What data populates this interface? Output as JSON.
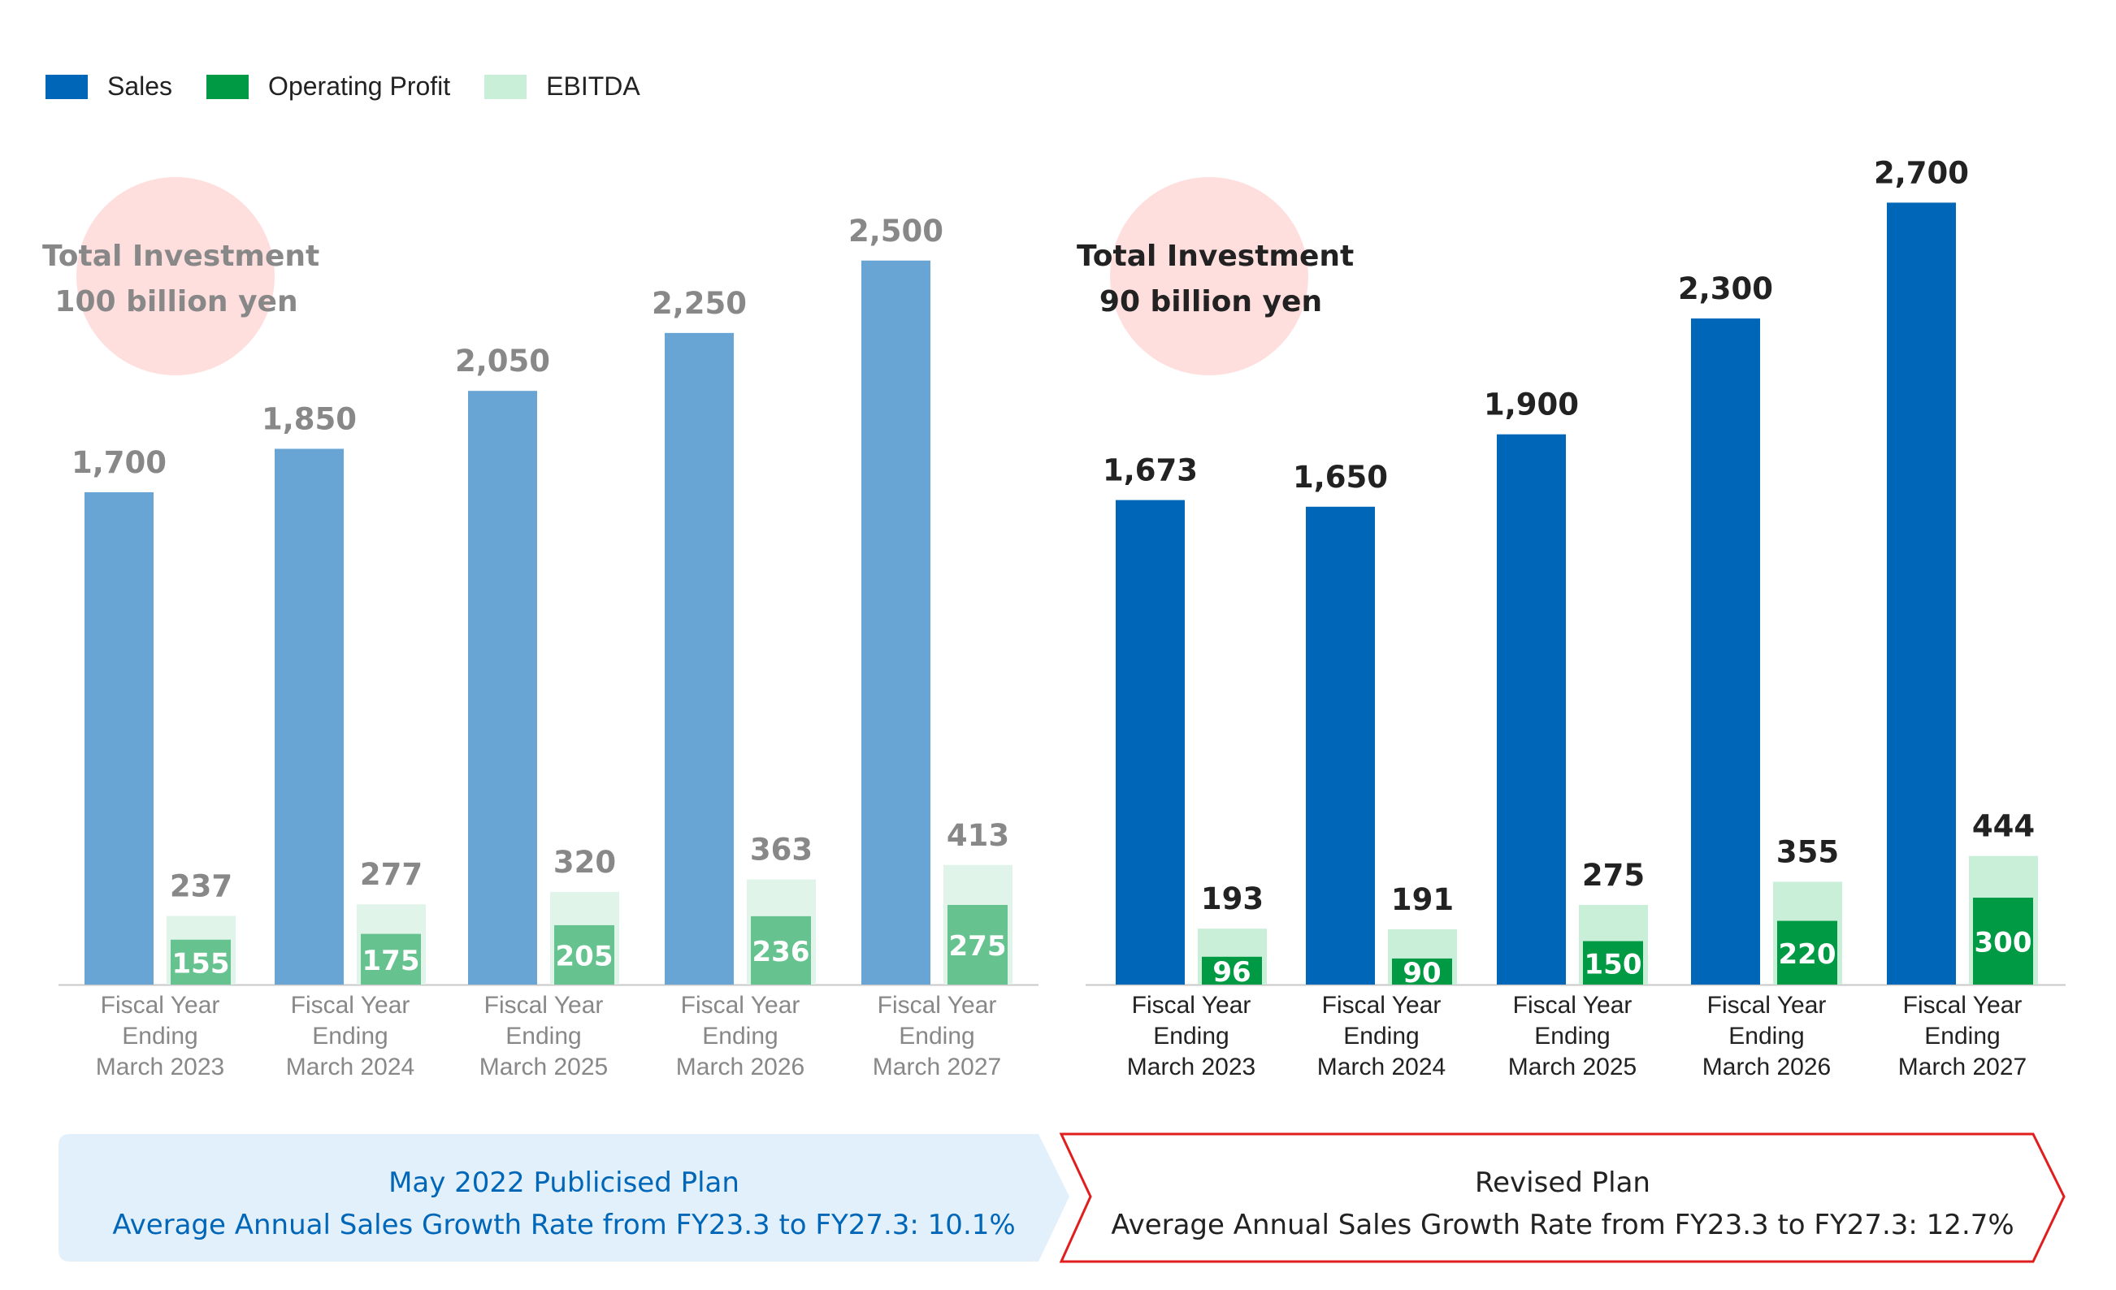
{
  "legend": [
    {
      "label": "Sales",
      "color": "#0066b8"
    },
    {
      "label": "Operating Profit",
      "color": "#009a44"
    },
    {
      "label": "EBITDA",
      "color": "#c9efd9"
    }
  ],
  "chart_data": [
    {
      "type": "bar",
      "categories": [
        [
          "Fiscal Year",
          "Ending",
          "March 2023"
        ],
        [
          "Fiscal Year",
          "Ending",
          "March 2024"
        ],
        [
          "Fiscal Year",
          "Ending",
          "March 2025"
        ],
        [
          "Fiscal Year",
          "Ending",
          "March 2026"
        ],
        [
          "Fiscal Year",
          "Ending",
          "March 2027"
        ]
      ],
      "series": [
        {
          "name": "Sales",
          "values": [
            1700,
            1850,
            2050,
            2250,
            2500
          ],
          "labels": [
            "1,700",
            "1,850",
            "2,050",
            "2,250",
            "2,500"
          ]
        },
        {
          "name": "Operating Profit",
          "values": [
            155,
            175,
            205,
            236,
            275
          ],
          "labels": [
            "155",
            "175",
            "205",
            "236",
            "275"
          ]
        },
        {
          "name": "EBITDA",
          "values": [
            237,
            277,
            320,
            363,
            413
          ],
          "labels": [
            "237",
            "277",
            "320",
            "363",
            "413"
          ]
        }
      ],
      "colors": {
        "sales": "#68a5d5",
        "operating_profit": "#66c38f",
        "ebitda": "#e0f4e9",
        "labels": "#888888"
      },
      "investment": {
        "line1": "Total Investment",
        "line2": "100 billion yen"
      },
      "banner": {
        "line1": "May 2022 Publicised Plan",
        "line2": "Average Annual Sales Growth Rate from FY23.3 to FY27.3: 10.1%"
      }
    },
    {
      "type": "bar",
      "categories": [
        [
          "Fiscal Year",
          "Ending",
          "March 2023"
        ],
        [
          "Fiscal Year",
          "Ending",
          "March 2024"
        ],
        [
          "Fiscal Year",
          "Ending",
          "March 2025"
        ],
        [
          "Fiscal Year",
          "Ending",
          "March 2026"
        ],
        [
          "Fiscal Year",
          "Ending",
          "March 2027"
        ]
      ],
      "series": [
        {
          "name": "Sales",
          "values": [
            1673,
            1650,
            1900,
            2300,
            2700
          ],
          "labels": [
            "1,673",
            "1,650",
            "1,900",
            "2,300",
            "2,700"
          ]
        },
        {
          "name": "Operating Profit",
          "values": [
            96,
            90,
            150,
            220,
            300
          ],
          "labels": [
            "96",
            "90",
            "150",
            "220",
            "300"
          ]
        },
        {
          "name": "EBITDA",
          "values": [
            193,
            191,
            275,
            355,
            444
          ],
          "labels": [
            "193",
            "191",
            "275",
            "355",
            "444"
          ]
        }
      ],
      "colors": {
        "sales": "#0066b8",
        "operating_profit": "#009a44",
        "ebitda": "#c9efd9",
        "labels": "#222222"
      },
      "investment": {
        "line1": "Total Investment",
        "line2": "90 billion yen"
      },
      "banner": {
        "line1": "Revised Plan",
        "line2": "Average Annual Sales Growth Rate from FY23.3 to FY27.3: 12.7%"
      }
    }
  ]
}
